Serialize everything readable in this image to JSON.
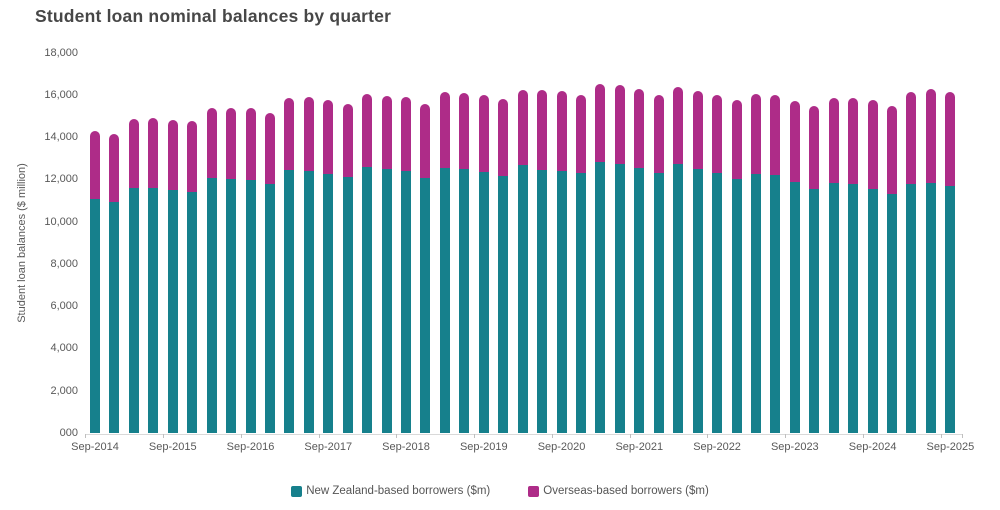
{
  "title": "Student loan nominal balances by quarter",
  "y_axis": {
    "title": "Student loan balances ($ million)",
    "tick_labels": [
      "18,000",
      "16,000",
      "14,000",
      "12,000",
      "10,000",
      "8,000",
      "6,000",
      "4,000",
      "2,000",
      "000"
    ]
  },
  "legend": [
    {
      "label": "New Zealand-based borrowers ($m)",
      "color": "#16808C"
    },
    {
      "label": "Overseas-based borrowers ($m)",
      "color": "#AE2C88"
    }
  ],
  "chart_data": {
    "type": "bar",
    "stacked": true,
    "title": "Student loan nominal balances by quarter",
    "xlabel": "",
    "ylabel": "Student loan balances ($ million)",
    "ylim": [
      0,
      18000
    ],
    "y_tick_step": 2000,
    "grid": false,
    "legend_position": "bottom",
    "bar_cap": "rounded-top",
    "categories": [
      "Sep-2014",
      "Dec-2014",
      "Mar-2015",
      "Jun-2015",
      "Sep-2015",
      "Dec-2015",
      "Mar-2016",
      "Jun-2016",
      "Sep-2016",
      "Dec-2016",
      "Mar-2017",
      "Jun-2017",
      "Sep-2017",
      "Dec-2017",
      "Mar-2018",
      "Jun-2018",
      "Sep-2018",
      "Dec-2018",
      "Mar-2019",
      "Jun-2019",
      "Sep-2019",
      "Dec-2019",
      "Mar-2020",
      "Jun-2020",
      "Sep-2020",
      "Dec-2020",
      "Mar-2021",
      "Jun-2021",
      "Sep-2021",
      "Dec-2021",
      "Mar-2022",
      "Jun-2022",
      "Sep-2022",
      "Dec-2022",
      "Mar-2023",
      "Jun-2023",
      "Sep-2023",
      "Dec-2023",
      "Mar-2024",
      "Jun-2024",
      "Sep-2024",
      "Dec-2024",
      "Mar-2025",
      "Jun-2025",
      "Sep-2025"
    ],
    "series": [
      {
        "name": "New Zealand-based borrowers ($m)",
        "color": "#16808C",
        "values": [
          11090,
          10960,
          11600,
          11625,
          11520,
          11410,
          12070,
          12040,
          11990,
          11800,
          12460,
          12430,
          12270,
          12120,
          12590,
          12500,
          12400,
          12080,
          12555,
          12525,
          12365,
          12160,
          12685,
          12480,
          12400,
          12305,
          12855,
          12730,
          12570,
          12305,
          12730,
          12510,
          12305,
          12020,
          12270,
          12225,
          11910,
          11550,
          11835,
          11800,
          11550,
          11330,
          11800,
          11835,
          11705
        ]
      },
      {
        "name": "Overseas-based borrowers ($m)",
        "color": "#AE2C88",
        "values": [
          3230,
          3230,
          3255,
          3290,
          3300,
          3350,
          3350,
          3360,
          3385,
          3345,
          3415,
          3490,
          3495,
          3455,
          3490,
          3470,
          3500,
          3530,
          3600,
          3605,
          3670,
          3650,
          3585,
          3755,
          3790,
          3730,
          3700,
          3745,
          3715,
          3695,
          3665,
          3680,
          3695,
          3745,
          3810,
          3775,
          3810,
          3945,
          4040,
          4075,
          4215,
          4150,
          4355,
          4440,
          4465
        ]
      }
    ],
    "x_tick_labels_shown": [
      "Sep-2014",
      "Sep-2015",
      "Sep-2016",
      "Sep-2017",
      "Sep-2018",
      "Sep-2019",
      "Sep-2020",
      "Sep-2021",
      "Sep-2022",
      "Sep-2023",
      "Sep-2024",
      "Sep-2025"
    ]
  }
}
